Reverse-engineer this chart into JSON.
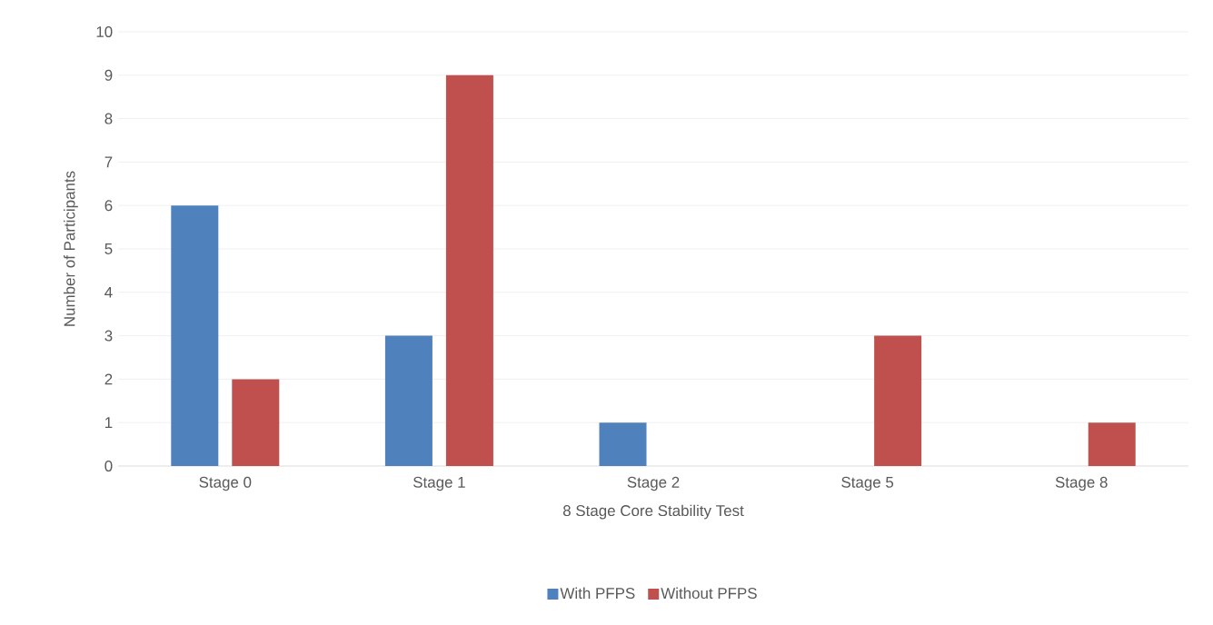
{
  "chart_data": {
    "type": "bar",
    "xlabel": "8 Stage Core Stability Test",
    "ylabel": "Number of Participants",
    "categories": [
      "Stage 0",
      "Stage 1",
      "Stage 2",
      "Stage 5",
      "Stage 8"
    ],
    "series": [
      {
        "name": "With PFPS",
        "color": "#4f81bd",
        "values": [
          6,
          3,
          1,
          0,
          0
        ]
      },
      {
        "name": "Without PFPS",
        "color": "#c0504d",
        "values": [
          2,
          9,
          0,
          3,
          1
        ]
      }
    ],
    "ylim": [
      0,
      10
    ],
    "yticks": [
      0,
      1,
      2,
      3,
      4,
      5,
      6,
      7,
      8,
      9,
      10
    ],
    "grid": "y",
    "legend": "bottom"
  }
}
